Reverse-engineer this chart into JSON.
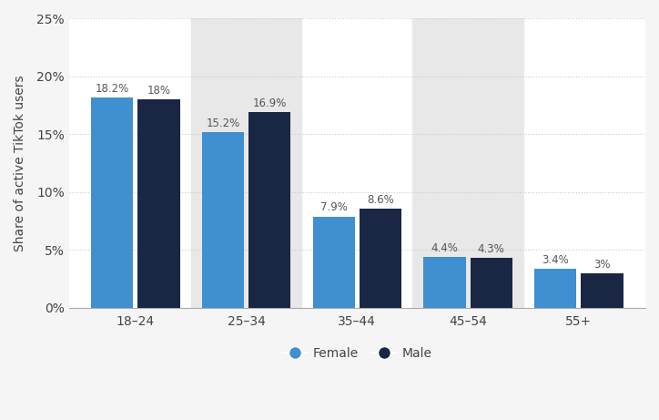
{
  "categories": [
    "18–24",
    "25–34",
    "35–44",
    "45–54",
    "55+"
  ],
  "female_values": [
    18.2,
    15.2,
    7.9,
    4.4,
    3.4
  ],
  "male_values": [
    18.0,
    16.9,
    8.6,
    4.3,
    3.0
  ],
  "female_labels": [
    "18.2%",
    "15.2%",
    "7.9%",
    "4.4%",
    "3.4%"
  ],
  "male_labels": [
    "18%",
    "16.9%",
    "8.6%",
    "4.3%",
    "3%"
  ],
  "female_color": "#3f8fd1",
  "male_color": "#1a2744",
  "ylabel": "Share of active TikTok users",
  "ylim": [
    0,
    25
  ],
  "yticks": [
    0,
    5,
    10,
    15,
    20,
    25
  ],
  "ytick_labels": [
    "0%",
    "5%",
    "10%",
    "15%",
    "20%",
    "25%"
  ],
  "bar_width": 0.38,
  "background_color": "#f5f5f5",
  "plot_bg_color": "#ffffff",
  "grid_color": "#cccccc",
  "label_fontsize": 8.5,
  "tick_fontsize": 10,
  "ylabel_fontsize": 10,
  "legend_fontsize": 10,
  "shaded_bg_groups": [
    1,
    3
  ],
  "shaded_bg_color": "#e8e8e8"
}
